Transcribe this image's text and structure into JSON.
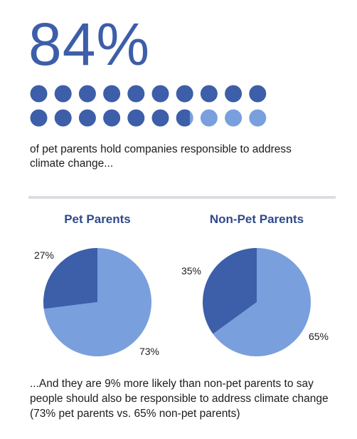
{
  "colors": {
    "primary": "#3d5ea8",
    "secondary": "#7a9fdd"
  },
  "headline": {
    "stat": "84%",
    "caption": "of pet parents hold companies responsible to address climate change..."
  },
  "chart_data": [
    {
      "type": "waffle",
      "total": 20,
      "filled": 16.8,
      "value_percent": 84,
      "label": "84%"
    },
    {
      "type": "pie",
      "title": "Pet Parents",
      "slices": [
        {
          "label": "27%",
          "value": 27,
          "color": "#3d5ea8"
        },
        {
          "label": "73%",
          "value": 73,
          "color": "#7a9fdd"
        }
      ]
    },
    {
      "type": "pie",
      "title": "Non-Pet Parents",
      "slices": [
        {
          "label": "35%",
          "value": 35,
          "color": "#3d5ea8"
        },
        {
          "label": "65%",
          "value": 65,
          "color": "#7a9fdd"
        }
      ]
    }
  ],
  "footer_text": "...And they are 9% more likely than non-pet parents to say people should also be responsible to address climate change (73% pet parents vs. 65% non-pet parents)"
}
